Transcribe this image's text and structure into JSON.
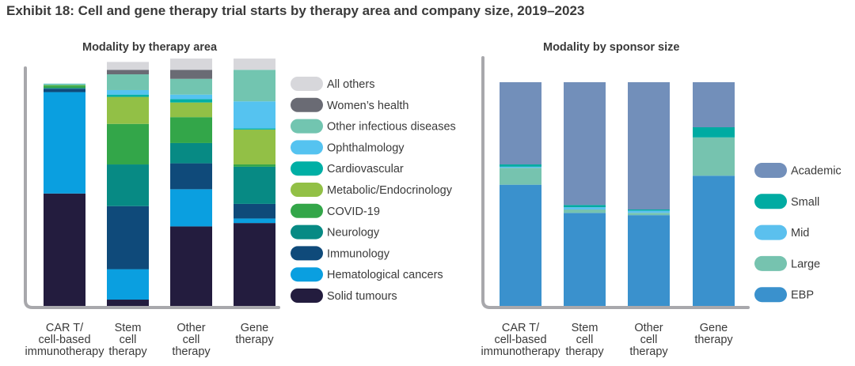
{
  "title": "Exhibit 18: Cell and gene therapy trial starts by therapy area and company size, 2019–2023",
  "chart_data": [
    {
      "type": "bar",
      "stacked": true,
      "normalized": true,
      "title": "Modality by therapy area",
      "categories": [
        "CAR T/\ncell-based\nimmunotherapy",
        "Stem\ncell\ntherapy",
        "Other\ncell\ntherapy",
        "Gene\ntherapy"
      ],
      "legend_position": "right",
      "series": [
        {
          "name": "Solid tumours",
          "color": "#231c3e",
          "values": [
            0.506,
            0.035,
            0.36,
            0.375
          ]
        },
        {
          "name": "Hematological cancers",
          "color": "#0a9fe0",
          "values": [
            0.45,
            0.135,
            0.165,
            0.02
          ]
        },
        {
          "name": "Immunology",
          "color": "#0f4a7a",
          "values": [
            0.015,
            0.28,
            0.115,
            0.065
          ]
        },
        {
          "name": "Neurology",
          "color": "#078a84",
          "values": [
            0.004,
            0.185,
            0.09,
            0.165
          ]
        },
        {
          "name": "COVID-19",
          "color": "#33a649",
          "values": [
            0.01,
            0.18,
            0.115,
            0.01
          ]
        },
        {
          "name": "Metabolic/Endocrinology",
          "color": "#92c046",
          "values": [
            0.003,
            0.12,
            0.065,
            0.155
          ]
        },
        {
          "name": "Cardiovascular",
          "color": "#00afa5",
          "values": [
            0.002,
            0.01,
            0.015,
            0.005
          ]
        },
        {
          "name": "Ophthalmology",
          "color": "#55c3f0",
          "values": [
            0.002,
            0.02,
            0.02,
            0.12
          ]
        },
        {
          "name": "Other infectious diseases",
          "color": "#72c5b0",
          "values": [
            0.002,
            0.07,
            0.07,
            0.14
          ]
        },
        {
          "name": "Women’s health",
          "color": "#6a6b74",
          "values": [
            0.0,
            0.02,
            0.04,
            0.0
          ]
        },
        {
          "name": "All others",
          "color": "#d7d7db",
          "values": [
            0.0,
            0.035,
            0.05,
            0.05
          ]
        }
      ]
    },
    {
      "type": "bar",
      "stacked": true,
      "normalized": true,
      "title": "Modality by sponsor size",
      "categories": [
        "CAR T/\ncell-based\nimmunotherapy",
        "Stem\ncell\ntherapy",
        "Other\ncell\ntherapy",
        "Gene\ntherapy"
      ],
      "legend_position": "right",
      "series": [
        {
          "name": "EBP",
          "color": "#3a91cd",
          "values": [
            0.545,
            0.42,
            0.41,
            0.585
          ]
        },
        {
          "name": "Large",
          "color": "#76c3af",
          "values": [
            0.075,
            0.015,
            0.01,
            0.17
          ]
        },
        {
          "name": "Mid",
          "color": "#5bc0ee",
          "values": [
            0.005,
            0.01,
            0.01,
            0.0
          ]
        },
        {
          "name": "Small",
          "color": "#00aba2",
          "values": [
            0.01,
            0.01,
            0.005,
            0.045
          ]
        },
        {
          "name": "Academic",
          "color": "#728fba",
          "values": [
            0.365,
            0.545,
            0.565,
            0.2
          ]
        }
      ]
    }
  ]
}
